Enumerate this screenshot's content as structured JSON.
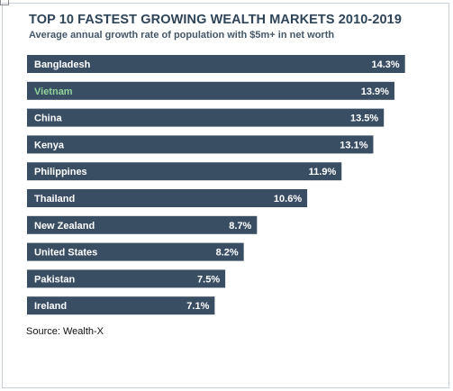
{
  "header": {
    "title": "TOP 10 FASTEST GROWING WEALTH MARKETS 2010-2019",
    "subtitle": "Average annual growth rate of population with $5m+ in net worth"
  },
  "source": "Source: Wealth-X",
  "colors": {
    "bar": "#3a4e63",
    "label": "#ffffff",
    "highlight_label": "#8fd39a",
    "title": "#2e4459"
  },
  "chart_data": {
    "type": "bar",
    "orientation": "horizontal",
    "title": "TOP 10 FASTEST GROWING WEALTH MARKETS 2010-2019",
    "subtitle": "Average annual growth rate of population with $5m+ in net worth",
    "categories": [
      "Bangladesh",
      "Vietnam",
      "China",
      "Kenya",
      "Philippines",
      "Thailand",
      "New Zealand",
      "United States",
      "Pakistan",
      "Ireland"
    ],
    "values": [
      14.3,
      13.9,
      13.5,
      13.1,
      11.9,
      10.6,
      8.7,
      8.2,
      7.5,
      7.1
    ],
    "value_labels": [
      "14.3%",
      "13.9%",
      "13.5%",
      "13.1%",
      "11.9%",
      "10.6%",
      "8.7%",
      "8.2%",
      "7.5%",
      "7.1%"
    ],
    "highlight": "Vietnam",
    "xlabel": "",
    "ylabel": "",
    "grid": false,
    "legend": "none"
  }
}
